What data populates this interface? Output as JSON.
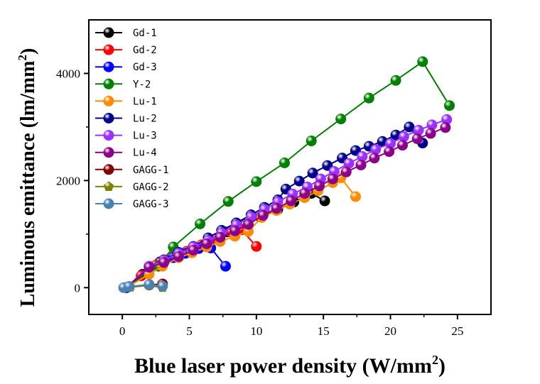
{
  "chart_data": {
    "type": "line",
    "xlabel": "Blue laser power density (W/mm",
    "xlabel_sup": "2",
    "xlabel_close": ")",
    "ylabel": "Luminous emittance (lm/mm",
    "ylabel_sup": "2",
    "ylabel_close": ")",
    "xlim": [
      -2.5,
      27.5
    ],
    "ylim": [
      -500,
      5000
    ],
    "xticks": [
      0,
      5,
      10,
      15,
      20,
      25
    ],
    "yticks": [
      0,
      2000,
      4000
    ],
    "ytick_labels": [
      "0",
      "2000",
      "4000"
    ],
    "xtick_labels": [
      "0",
      "5",
      "10",
      "15",
      "20",
      "25"
    ],
    "legend_position": "top-left",
    "series": [
      {
        "name": "Gd-1",
        "color": "#000000",
        "marker": "circle",
        "x": [
          0.3,
          1.5,
          2.8,
          4.1,
          5.3,
          6.6,
          7.8,
          9.1,
          10.3,
          11.6,
          12.8,
          14.1,
          15.1
        ],
        "y": [
          0,
          250,
          480,
          650,
          760,
          900,
          1040,
          1180,
          1320,
          1460,
          1600,
          1760,
          1620
        ]
      },
      {
        "name": "Gd-2",
        "color": "#ff0000",
        "marker": "circle",
        "x": [
          0.3,
          1.4,
          2.5,
          3.7,
          4.8,
          5.9,
          7.0,
          8.1,
          8.9,
          10.0
        ],
        "y": [
          0,
          220,
          420,
          570,
          680,
          800,
          920,
          1040,
          1080,
          770
        ]
      },
      {
        "name": "Gd-3",
        "color": "#0000ff",
        "marker": "circle",
        "x": [
          0.3,
          1.9,
          2.9,
          3.8,
          4.7,
          5.7,
          6.6,
          7.7
        ],
        "y": [
          0,
          280,
          420,
          560,
          640,
          730,
          740,
          400
        ]
      },
      {
        "name": "Y-2",
        "color": "#008000",
        "marker": "circle",
        "x": [
          0.3,
          2.7,
          3.8,
          5.8,
          7.9,
          10.0,
          12.1,
          14.1,
          16.3,
          18.4,
          20.4,
          22.4,
          24.4
        ],
        "y": [
          0,
          400,
          760,
          1190,
          1610,
          1980,
          2330,
          2740,
          3150,
          3540,
          3870,
          4220,
          3400
        ]
      },
      {
        "name": "Lu-1",
        "color": "#ff8c00",
        "marker": "circle",
        "x": [
          0.3,
          2.0,
          3.0,
          4.2,
          5.2,
          6.3,
          7.3,
          8.4,
          9.4,
          10.4,
          11.5,
          12.5,
          13.6,
          14.6,
          15.7,
          16.3,
          17.4
        ],
        "y": [
          0,
          250,
          400,
          560,
          650,
          760,
          860,
          960,
          1050,
          1310,
          1440,
          1560,
          1680,
          1810,
          1960,
          2050,
          1700
        ]
      },
      {
        "name": "Lu-2",
        "color": "#00008b",
        "marker": "circle",
        "x": [
          0.3,
          2.0,
          3.1,
          4.2,
          5.3,
          6.4,
          7.4,
          8.5,
          9.6,
          10.6,
          11.6,
          12.2,
          13.2,
          14.2,
          15.3,
          16.4,
          17.4,
          18.4,
          19.4,
          20.4,
          21.4,
          22.4
        ],
        "y": [
          0,
          400,
          520,
          660,
          770,
          930,
          1070,
          1210,
          1360,
          1500,
          1640,
          1840,
          1990,
          2140,
          2280,
          2420,
          2560,
          2640,
          2730,
          2850,
          3000,
          2700
        ]
      },
      {
        "name": "Lu-3",
        "color": "#9b30ff",
        "marker": "circle",
        "x": [
          0.3,
          2.0,
          3.1,
          4.2,
          5.3,
          6.4,
          7.4,
          8.5,
          9.6,
          10.6,
          11.6,
          12.7,
          13.8,
          14.8,
          15.8,
          16.9,
          17.9,
          18.9,
          20.0,
          21.0,
          22.1,
          23.1,
          24.2
        ],
        "y": [
          0,
          400,
          510,
          640,
          760,
          880,
          1020,
          1170,
          1320,
          1460,
          1600,
          1750,
          1880,
          2030,
          2170,
          2320,
          2450,
          2580,
          2690,
          2820,
          2940,
          3040,
          3140
        ]
      },
      {
        "name": "Lu-4",
        "color": "#8b008b",
        "marker": "circle",
        "x": [
          0.3,
          2.0,
          3.1,
          4.2,
          5.3,
          6.3,
          7.3,
          8.4,
          9.4,
          10.5,
          11.5,
          12.6,
          13.6,
          14.7,
          15.7,
          16.7,
          17.8,
          18.8,
          19.9,
          20.9,
          22.0,
          23.0,
          24.1
        ],
        "y": [
          0,
          380,
          470,
          580,
          700,
          820,
          940,
          1060,
          1180,
          1350,
          1480,
          1620,
          1760,
          1900,
          2030,
          2160,
          2290,
          2420,
          2540,
          2660,
          2780,
          2880,
          2990
        ]
      },
      {
        "name": "GAGG-1",
        "color": "#800000",
        "marker": "circle",
        "x": [
          0.3,
          0.5,
          2.0,
          3.0
        ],
        "y": [
          0,
          20,
          50,
          70
        ]
      },
      {
        "name": "GAGG-2",
        "color": "#808000",
        "marker": "pentagon",
        "x": [
          0.1,
          0.6,
          2.0,
          3.0
        ],
        "y": [
          0,
          10,
          40,
          0
        ]
      },
      {
        "name": "GAGG-3",
        "color": "#4682b4",
        "marker": "circle",
        "x": [
          0.1,
          0.5,
          2.0,
          3.0
        ],
        "y": [
          0,
          20,
          60,
          30
        ]
      }
    ]
  }
}
